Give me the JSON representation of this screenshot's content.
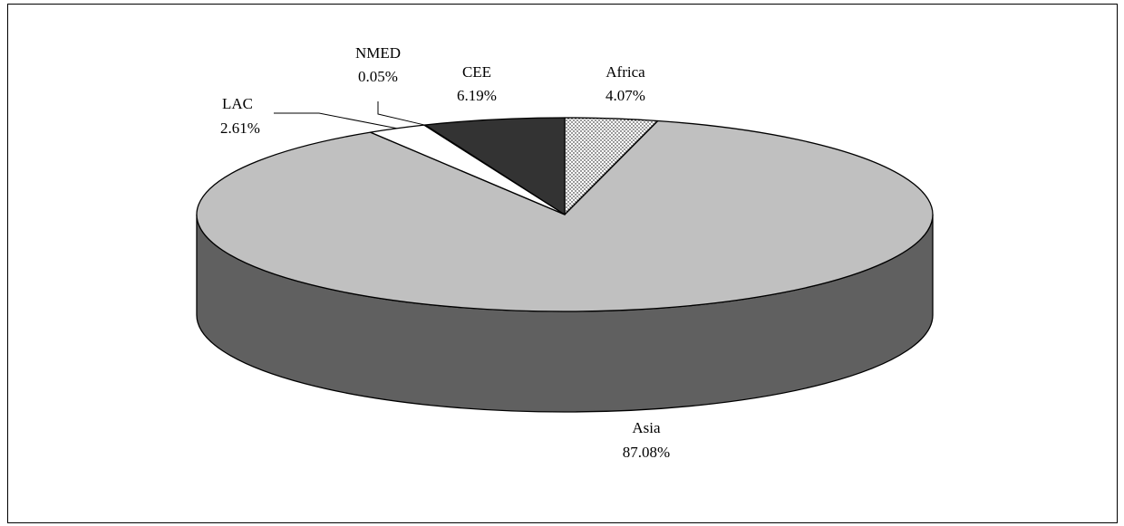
{
  "chart_data": {
    "type": "pie",
    "style": "3d",
    "title": "",
    "slices": [
      {
        "label": "Africa",
        "value": 4.07,
        "value_label": "4.07%",
        "fill": "dots",
        "color": "#ffffff"
      },
      {
        "label": "Asia",
        "value": 87.08,
        "value_label": "87.08%",
        "fill": "solid",
        "color": "#c0c0c0",
        "side_color": "#606060"
      },
      {
        "label": "LAC",
        "value": 2.61,
        "value_label": "2.61%",
        "fill": "solid",
        "color": "#ffffff"
      },
      {
        "label": "NMED",
        "value": 0.05,
        "value_label": "0.05%",
        "fill": "solid",
        "color": "#ffffff"
      },
      {
        "label": "CEE",
        "value": 6.19,
        "value_label": "6.19%",
        "fill": "solid",
        "color": "#333333"
      }
    ]
  }
}
